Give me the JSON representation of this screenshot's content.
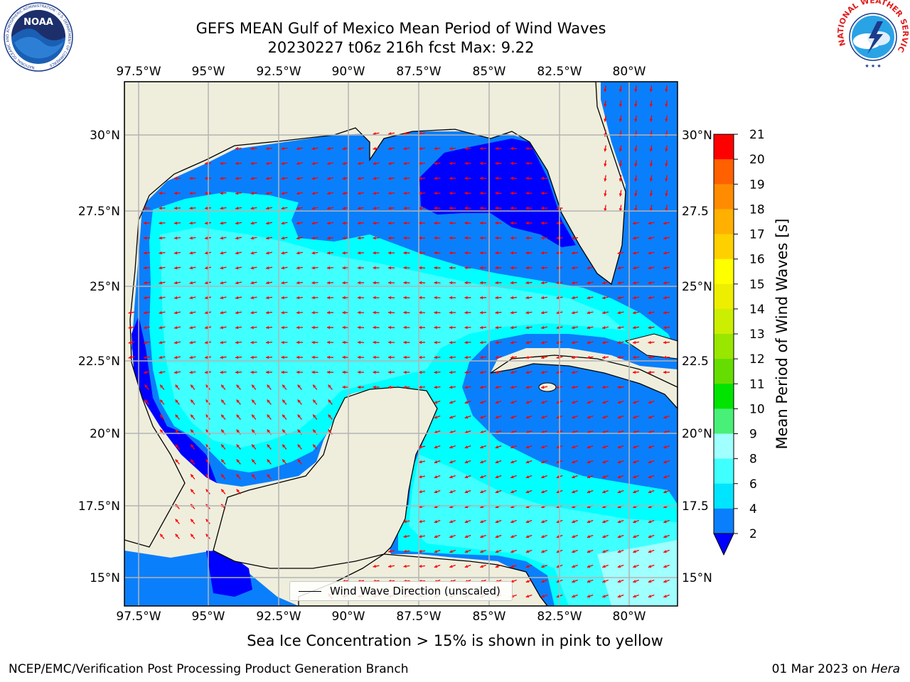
{
  "title_line1": "GEFS MEAN Gulf of Mexico Mean Period of Wind Waves",
  "title_line2": "20230227 t06z 216h fcst   Max: 9.22",
  "map": {
    "lon_labels": [
      "97.5°W",
      "95°W",
      "92.5°W",
      "90°W",
      "87.5°W",
      "85°W",
      "82.5°W",
      "80°W"
    ],
    "lat_labels_left": [
      "30°N",
      "27.5°N",
      "25°N",
      "22.5°N",
      "20°N",
      "17.5°N",
      "15°N"
    ],
    "lat_labels_right": [
      "30°N",
      "27.5",
      "25°N",
      "22.5",
      "20°N",
      "17.5",
      "15°N"
    ],
    "legend_label": "Wind Wave Direction (unscaled)"
  },
  "colorbar": {
    "label": "Mean Period of Wind Waves [s]",
    "ticks": [
      "2",
      "4",
      "6",
      "8",
      "9",
      "10",
      "11",
      "12",
      "13",
      "14",
      "15",
      "16",
      "17",
      "18",
      "19",
      "20",
      "21"
    ],
    "colors": [
      "#0a7ffb",
      "#00e5ff",
      "#40ffff",
      "#a0ffff",
      "#48f078",
      "#00e400",
      "#66dd00",
      "#99e600",
      "#ccee00",
      "#eeee00",
      "#ffff00",
      "#ffd000",
      "#ffb000",
      "#ff8c00",
      "#ff6000",
      "#ff3000",
      "#ff0000"
    ],
    "under_color": "#0000ff"
  },
  "footer": {
    "ice_note": "Sea Ice Concentration > 15% is shown in pink to yellow",
    "credit": "NCEP/EMC/Verification Post Processing Product Generation Branch",
    "date": "01 Mar 2023 on",
    "host": "Hera"
  },
  "logos": {
    "noaa": {
      "text": "NOAA",
      "ring_text": "NATIONAL OCEANIC AND ATMOSPHERIC ADMINISTRATION · U.S. DEPARTMENT OF COMMERCE"
    },
    "nws": {
      "ring_text": "NATIONAL WEATHER SERVICE"
    }
  },
  "colors": {
    "land": "#efeedc",
    "water_blue": "#0a7ffb",
    "deep": "#0000ff",
    "cyan": "#00ffff",
    "pale": "#40ffff",
    "arrow": "#ff0000",
    "grid": "#b4b4b4"
  }
}
